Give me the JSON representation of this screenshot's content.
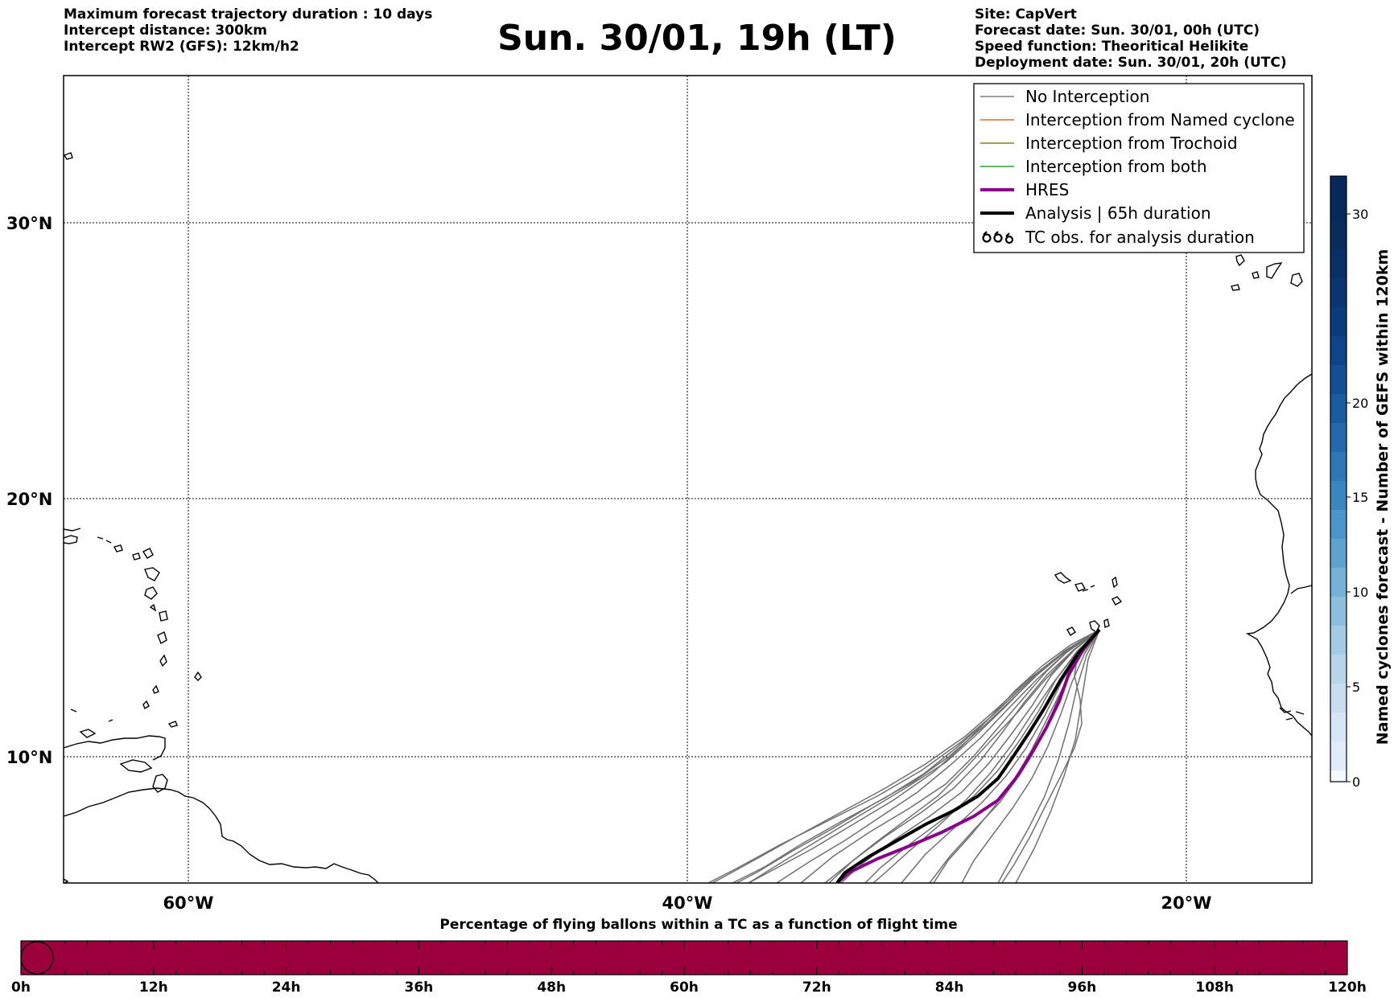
{
  "header_left": [
    "Maximum forecast trajectory duration : 10 days",
    "Intercept distance: 300km",
    "Intercept RW2 (GFS):  12km/h2"
  ],
  "header_right": [
    "Site: CapVert",
    "Forecast date: Sun. 30/01, 00h (UTC)",
    "Speed function: Theoritical Helikite",
    "Deployment date: Sun. 30/01, 20h (UTC)"
  ],
  "title": "Sun. 30/01, 19h (LT)",
  "map": {
    "lat_labels": [
      "30°N",
      "20°N",
      "10°N"
    ],
    "lon_labels": [
      "60°W",
      "40°W",
      "20°W"
    ],
    "legend": [
      {
        "label": "No Interception",
        "color": "#808080",
        "style": "thin"
      },
      {
        "label": "Interception from Named cyclone",
        "color": "#e8692b",
        "style": "thin"
      },
      {
        "label": "Interception from Trochoid",
        "color": "#8a7f1a",
        "style": "thin"
      },
      {
        "label": "Interception from both",
        "color": "#2ca02c",
        "style": "thin"
      },
      {
        "label": "HRES",
        "color": "#8b008b",
        "style": "thick"
      },
      {
        "label": "Analysis | 65h duration",
        "color": "#000000",
        "style": "thick"
      },
      {
        "label": "TC obs. for analysis duration",
        "color": "#000000",
        "style": "symbol"
      }
    ],
    "site": "CapVert",
    "tracks": {
      "analysis_color": "#000000",
      "hres_color": "#8b008b",
      "ensemble_color": "#707070"
    }
  },
  "colorbar": {
    "label": "Named cyclones forecast - Number of GEFS within 120km",
    "ticks": [
      "0",
      "5",
      "10",
      "15",
      "20",
      "30"
    ],
    "min": 0,
    "max": 32,
    "colormap": "Blues"
  },
  "flight_bar": {
    "title": "Percentage of flying ballons within a TC as a function of flight time",
    "ticks": [
      "0h",
      "12h",
      "24h",
      "36h",
      "48h",
      "60h",
      "72h",
      "84h",
      "96h",
      "108h",
      "120h"
    ],
    "fill_color": "#9b003c",
    "percent_in_tc": 100
  }
}
